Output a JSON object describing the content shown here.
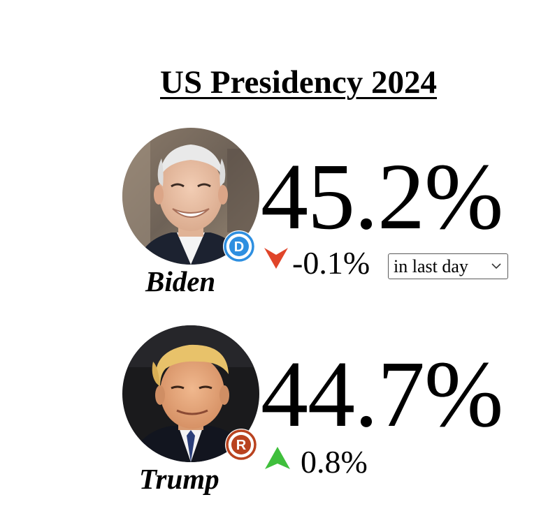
{
  "page": {
    "title": "US Presidency 2024"
  },
  "candidates": [
    {
      "name": "Biden",
      "percent": "45.2%",
      "change": "-0.1%",
      "trend": "down",
      "party_letter": "D",
      "party_color": "#2e8fe0",
      "trend_color": "#e0452a"
    },
    {
      "name": "Trump",
      "percent": "44.7%",
      "change": "0.8%",
      "trend": "up",
      "party_letter": "R",
      "party_color": "#b9431f",
      "trend_color": "#3fbf3c"
    }
  ],
  "period_select": {
    "selected": "in last day"
  },
  "icons": {
    "down_arrow": "trend-down-arrow-icon",
    "up_arrow": "trend-up-arrow-icon",
    "chevron": "chevron-down-icon"
  }
}
